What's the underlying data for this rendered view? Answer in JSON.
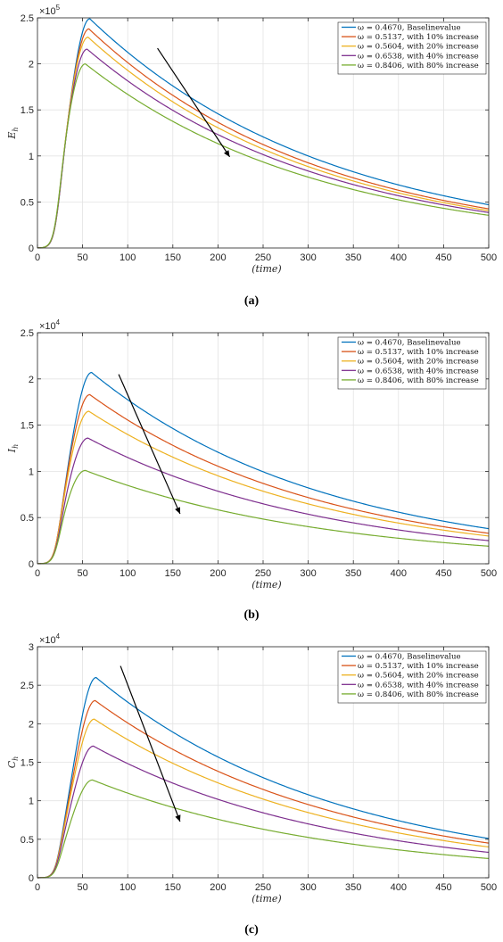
{
  "chart_data": [
    {
      "type": "line",
      "panel": "(a)",
      "ylabel": "E_h",
      "xlabel": "(time)",
      "exponent_label": "×10^5",
      "exponent_base": "×10",
      "exponent_power": "5",
      "xlim": [
        0,
        500
      ],
      "ylim": [
        0,
        250000
      ],
      "x_ticks": [
        0,
        50,
        100,
        150,
        200,
        250,
        300,
        350,
        400,
        450,
        500
      ],
      "y_ticks": [
        0,
        50000,
        100000,
        150000,
        200000,
        250000
      ],
      "y_tick_labels": [
        "0",
        "0.5",
        "1",
        "1.5",
        "2",
        "2.5"
      ],
      "grid": true,
      "legend_position": "top-right",
      "arrow": {
        "from": [
          133,
          217000
        ],
        "to": [
          213,
          99000
        ]
      },
      "series": [
        {
          "name": "ω = 0.4670, Baselinevalue",
          "color": "#0072BD",
          "peak": 249000,
          "peak_t": 58,
          "end": 47000
        },
        {
          "name": "ω = 0.5137, with 10% increase",
          "color": "#D95319",
          "peak": 238000,
          "peak_t": 57,
          "end": 42500
        },
        {
          "name": "ω = 0.5604, with 20% increase",
          "color": "#EDB120",
          "peak": 229000,
          "peak_t": 56,
          "end": 40500
        },
        {
          "name": "ω = 0.6538, with 40% increase",
          "color": "#7E2F8E",
          "peak": 216000,
          "peak_t": 55,
          "end": 38500
        },
        {
          "name": "ω = 0.8406, with 80% increase",
          "color": "#77AC30",
          "peak": 200000,
          "peak_t": 53,
          "end": 35500
        }
      ]
    },
    {
      "type": "line",
      "panel": "(b)",
      "ylabel": "I_h",
      "xlabel": "(time)",
      "exponent_label": "×10^4",
      "exponent_base": "×10",
      "exponent_power": "4",
      "xlim": [
        0,
        500
      ],
      "ylim": [
        0,
        25000
      ],
      "x_ticks": [
        0,
        50,
        100,
        150,
        200,
        250,
        300,
        350,
        400,
        450,
        500
      ],
      "y_ticks": [
        0,
        5000,
        10000,
        15000,
        20000,
        25000
      ],
      "y_tick_labels": [
        "0",
        "0.5",
        "1",
        "1.5",
        "2",
        "2.5"
      ],
      "grid": true,
      "legend_position": "top-right",
      "arrow": {
        "from": [
          90,
          20500
        ],
        "to": [
          158,
          5400
        ]
      },
      "series": [
        {
          "name": "ω = 0.4670, Baselinevalue",
          "color": "#0072BD",
          "peak": 20700,
          "peak_t": 60,
          "end": 3800
        },
        {
          "name": "ω = 0.5137, with 10% increase",
          "color": "#D95319",
          "peak": 18300,
          "peak_t": 58,
          "end": 3300
        },
        {
          "name": "ω = 0.5604, with 20% increase",
          "color": "#EDB120",
          "peak": 16500,
          "peak_t": 57,
          "end": 3000
        },
        {
          "name": "ω = 0.6538, with 40% increase",
          "color": "#7E2F8E",
          "peak": 13600,
          "peak_t": 56,
          "end": 2500
        },
        {
          "name": "ω = 0.8406, with 80% increase",
          "color": "#77AC30",
          "peak": 10100,
          "peak_t": 53,
          "end": 1900
        }
      ]
    },
    {
      "type": "line",
      "panel": "(c)",
      "ylabel": "C_h",
      "xlabel": "(time)",
      "exponent_label": "×10^4",
      "exponent_base": "×10",
      "exponent_power": "4",
      "xlim": [
        0,
        500
      ],
      "ylim": [
        0,
        30000
      ],
      "x_ticks": [
        0,
        50,
        100,
        150,
        200,
        250,
        300,
        350,
        400,
        450,
        500
      ],
      "y_ticks": [
        0,
        5000,
        10000,
        15000,
        20000,
        25000,
        30000
      ],
      "y_tick_labels": [
        "0",
        "0.5",
        "1",
        "1.5",
        "2",
        "2.5",
        "3"
      ],
      "grid": true,
      "legend_position": "top-right",
      "arrow": {
        "from": [
          92,
          27500
        ],
        "to": [
          158,
          7300
        ]
      },
      "series": [
        {
          "name": "ω = 0.4670, Baselinevalue",
          "color": "#0072BD",
          "peak": 26000,
          "peak_t": 65,
          "end": 5100
        },
        {
          "name": "ω = 0.5137, with 10% increase",
          "color": "#D95319",
          "peak": 23000,
          "peak_t": 64,
          "end": 4500
        },
        {
          "name": "ω = 0.5604, with 20% increase",
          "color": "#EDB120",
          "peak": 20600,
          "peak_t": 63,
          "end": 4000
        },
        {
          "name": "ω = 0.6538, with 40% increase",
          "color": "#7E2F8E",
          "peak": 17100,
          "peak_t": 62,
          "end": 3300
        },
        {
          "name": "ω = 0.8406, with 80% increase",
          "color": "#77AC30",
          "peak": 12700,
          "peak_t": 61,
          "end": 2500
        }
      ]
    }
  ]
}
